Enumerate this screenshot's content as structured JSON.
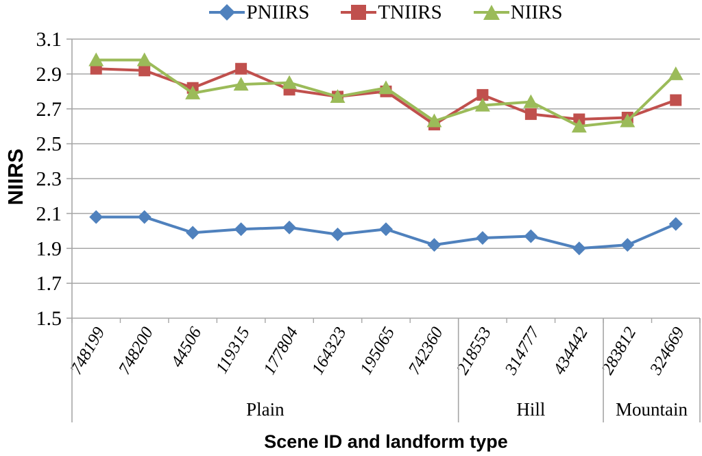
{
  "chart_data": {
    "type": "line",
    "title": "",
    "xlabel": "Scene ID and landform type",
    "ylabel": "NIIRS",
    "ylim": [
      1.5,
      3.1
    ],
    "ytick_step": 0.2,
    "yticks": [
      "3.1",
      "2.9",
      "2.7",
      "2.5",
      "2.3",
      "2.1",
      "1.9",
      "1.7",
      "1.5"
    ],
    "grid": true,
    "grid_color": "#a6a6a6",
    "axis_color": "#a6a6a6",
    "legend_position": "top",
    "categories": [
      "748199",
      "748200",
      "44506",
      "119315",
      "177804",
      "164323",
      "195065",
      "742360",
      "218553",
      "314777",
      "434442",
      "283812",
      "324669"
    ],
    "groups": [
      {
        "label": "Plain",
        "count": 8
      },
      {
        "label": "Hill",
        "count": 3
      },
      {
        "label": "Mountain",
        "count": 2
      }
    ],
    "series": [
      {
        "name": "PNIIRS",
        "marker": "diamond",
        "color": "#4f81bd",
        "values": [
          2.08,
          2.08,
          1.99,
          2.01,
          2.02,
          1.98,
          2.01,
          1.92,
          1.96,
          1.97,
          1.9,
          1.92,
          2.04
        ]
      },
      {
        "name": "TNIIRS",
        "marker": "square",
        "color": "#c0504d",
        "values": [
          2.93,
          2.92,
          2.82,
          2.93,
          2.81,
          2.77,
          2.8,
          2.61,
          2.78,
          2.67,
          2.64,
          2.65,
          2.75
        ]
      },
      {
        "name": "NIIRS",
        "marker": "triangle",
        "color": "#9bbb59",
        "values": [
          2.98,
          2.98,
          2.79,
          2.84,
          2.85,
          2.77,
          2.82,
          2.63,
          2.72,
          2.74,
          2.6,
          2.63,
          2.9
        ]
      }
    ]
  }
}
